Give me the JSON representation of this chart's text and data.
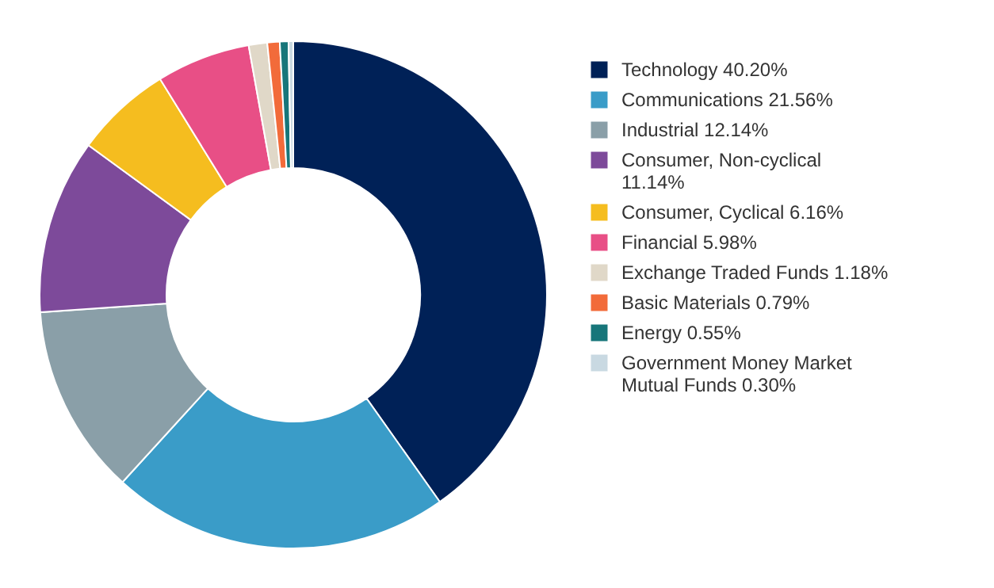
{
  "chart_data": {
    "type": "donut",
    "categories": [
      "Technology",
      "Communications",
      "Industrial",
      "Consumer, Non-cyclical",
      "Consumer, Cyclical",
      "Financial",
      "Exchange Traded Funds",
      "Basic Materials",
      "Energy",
      "Government Money Market Mutual Funds"
    ],
    "values": [
      40.2,
      21.56,
      12.14,
      11.14,
      6.16,
      5.98,
      1.18,
      0.79,
      0.55,
      0.3
    ],
    "value_labels": [
      "40.20%",
      "21.56%",
      "12.14%",
      "11.14%",
      "6.16%",
      "5.98%",
      "1.18%",
      "0.79%",
      "0.55%",
      "0.30%"
    ],
    "colors": [
      "#002157",
      "#3a9cc8",
      "#8a9fa8",
      "#7d4a9a",
      "#f5bd1f",
      "#e84f86",
      "#e0d8c8",
      "#f26b3a",
      "#17767a",
      "#c9d9e2"
    ],
    "legend": "right"
  }
}
